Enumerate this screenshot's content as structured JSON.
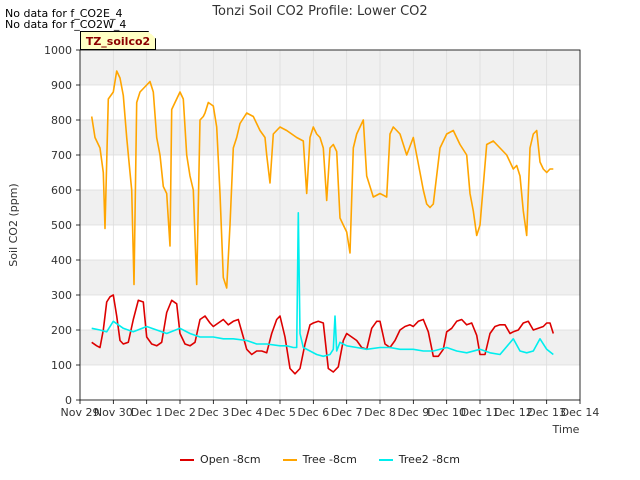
{
  "header": {
    "nodata_lines": [
      "No data for f_CO2E_4",
      "No data for f_CO2W_4"
    ],
    "station_tag": "TZ_soilco2"
  },
  "chart_data": {
    "type": "line",
    "title": "Tonzi Soil CO2 Profile: Lower CO2",
    "xlabel": "Time",
    "ylabel": "Soil CO2 (ppm)",
    "xlim": [
      0,
      15
    ],
    "ylim": [
      0,
      1000
    ],
    "grid": true,
    "legend_position": "bottom-center",
    "x_ticks": [
      0,
      1,
      2,
      3,
      4,
      5,
      6,
      7,
      8,
      9,
      10,
      11,
      12,
      13,
      14,
      15
    ],
    "x_tick_labels": [
      "Nov 29",
      "Nov 30",
      "Dec 1",
      "Dec 2",
      "Dec 3",
      "Dec 4",
      "Dec 5",
      "Dec 6",
      "Dec 7",
      "Dec 8",
      "Dec 9",
      "Dec 10",
      "Dec 11",
      "Dec 12",
      "Dec 13",
      "Dec 14"
    ],
    "y_ticks": [
      0,
      100,
      200,
      300,
      400,
      500,
      600,
      700,
      800,
      900,
      1000
    ],
    "y_tick_labels": [
      "0",
      "100",
      "200",
      "300",
      "400",
      "500",
      "600",
      "700",
      "800",
      "900",
      "1000"
    ],
    "series": [
      {
        "name": "Open -8cm",
        "color": "#dd0000",
        "x": [
          0.35,
          0.5,
          0.6,
          0.7,
          0.8,
          0.9,
          1.0,
          1.1,
          1.2,
          1.3,
          1.45,
          1.6,
          1.75,
          1.9,
          2.0,
          2.15,
          2.3,
          2.45,
          2.6,
          2.75,
          2.9,
          3.0,
          3.15,
          3.3,
          3.45,
          3.6,
          3.75,
          3.9,
          4.0,
          4.15,
          4.3,
          4.45,
          4.6,
          4.75,
          4.9,
          5.0,
          5.15,
          5.3,
          5.45,
          5.6,
          5.75,
          5.9,
          6.0,
          6.15,
          6.3,
          6.45,
          6.6,
          6.75,
          6.9,
          7.0,
          7.15,
          7.3,
          7.45,
          7.6,
          7.75,
          7.9,
          8.0,
          8.15,
          8.3,
          8.45,
          8.6,
          8.75,
          8.9,
          9.0,
          9.15,
          9.3,
          9.45,
          9.6,
          9.75,
          9.9,
          10.0,
          10.15,
          10.3,
          10.45,
          10.6,
          10.75,
          10.9,
          11.0,
          11.15,
          11.3,
          11.45,
          11.6,
          11.75,
          11.9,
          12.0,
          12.15,
          12.3,
          12.45,
          12.6,
          12.75,
          12.9,
          13.0,
          13.15,
          13.3,
          13.45,
          13.6,
          13.75,
          13.9,
          14.0,
          14.1,
          14.2
        ],
        "y": [
          165,
          155,
          150,
          200,
          280,
          295,
          300,
          240,
          170,
          160,
          165,
          230,
          285,
          280,
          180,
          160,
          155,
          165,
          250,
          285,
          275,
          190,
          160,
          155,
          165,
          230,
          240,
          220,
          210,
          220,
          230,
          215,
          225,
          230,
          180,
          145,
          130,
          140,
          140,
          135,
          190,
          230,
          240,
          180,
          90,
          75,
          90,
          160,
          215,
          220,
          225,
          220,
          90,
          80,
          95,
          170,
          190,
          180,
          170,
          150,
          145,
          205,
          225,
          225,
          160,
          150,
          170,
          200,
          210,
          215,
          210,
          225,
          230,
          195,
          125,
          125,
          145,
          195,
          205,
          225,
          230,
          215,
          220,
          185,
          130,
          130,
          190,
          210,
          215,
          215,
          190,
          195,
          200,
          220,
          225,
          200,
          205,
          210,
          220,
          220,
          190
        ],
        "note": "values are approximate readings from the figure"
      },
      {
        "name": "Tree -8cm",
        "color": "#ffa500",
        "x": [
          0.35,
          0.45,
          0.6,
          0.7,
          0.75,
          0.85,
          1.0,
          1.1,
          1.2,
          1.3,
          1.4,
          1.5,
          1.55,
          1.62,
          1.7,
          1.8,
          2.0,
          2.1,
          2.2,
          2.3,
          2.4,
          2.5,
          2.6,
          2.7,
          2.75,
          2.85,
          3.0,
          3.1,
          3.2,
          3.3,
          3.4,
          3.5,
          3.6,
          3.7,
          3.75,
          3.85,
          4.0,
          4.1,
          4.2,
          4.3,
          4.4,
          4.5,
          4.6,
          4.7,
          4.8,
          5.0,
          5.2,
          5.4,
          5.55,
          5.6,
          5.7,
          5.8,
          6.0,
          6.2,
          6.5,
          6.7,
          6.8,
          6.9,
          7.0,
          7.1,
          7.2,
          7.3,
          7.4,
          7.5,
          7.6,
          7.7,
          7.8,
          7.9,
          8.0,
          8.1,
          8.2,
          8.3,
          8.4,
          8.5,
          8.6,
          8.7,
          8.8,
          9.0,
          9.2,
          9.3,
          9.4,
          9.5,
          9.6,
          9.8,
          10.0,
          10.2,
          10.3,
          10.4,
          10.5,
          10.6,
          10.8,
          11.0,
          11.2,
          11.4,
          11.6,
          11.7,
          11.8,
          11.9,
          12.0,
          12.2,
          12.4,
          12.6,
          12.8,
          12.9,
          13.0,
          13.1,
          13.2,
          13.3,
          13.4,
          13.5,
          13.6,
          13.7,
          13.8,
          13.9,
          14.0,
          14.1,
          14.2
        ],
        "y": [
          810,
          750,
          720,
          650,
          490,
          860,
          880,
          940,
          920,
          870,
          750,
          650,
          600,
          330,
          850,
          880,
          900,
          910,
          880,
          750,
          700,
          610,
          590,
          440,
          830,
          850,
          880,
          860,
          700,
          640,
          600,
          330,
          800,
          810,
          820,
          850,
          840,
          780,
          590,
          350,
          320,
          500,
          720,
          750,
          790,
          820,
          810,
          770,
          750,
          700,
          620,
          760,
          780,
          770,
          750,
          740,
          590,
          750,
          780,
          760,
          750,
          720,
          570,
          720,
          730,
          710,
          520,
          500,
          480,
          420,
          720,
          760,
          780,
          800,
          640,
          610,
          580,
          590,
          580,
          760,
          780,
          770,
          760,
          700,
          750,
          650,
          600,
          560,
          550,
          560,
          720,
          760,
          770,
          730,
          700,
          590,
          540,
          470,
          500,
          730,
          740,
          720,
          700,
          680,
          660,
          670,
          640,
          540,
          470,
          720,
          760,
          770,
          680,
          660,
          650,
          660,
          660
        ],
        "note": "values are approximate readings from the figure"
      },
      {
        "name": "Tree2 -8cm",
        "color": "#00eeee",
        "x": [
          0.35,
          0.6,
          0.8,
          1.0,
          1.3,
          1.6,
          2.0,
          2.3,
          2.6,
          3.0,
          3.3,
          3.6,
          4.0,
          4.3,
          4.6,
          5.0,
          5.3,
          5.6,
          6.0,
          6.2,
          6.4,
          6.5,
          6.55,
          6.6,
          6.7,
          6.9,
          7.1,
          7.3,
          7.5,
          7.6,
          7.65,
          7.7,
          7.8,
          8.0,
          8.3,
          8.6,
          9.0,
          9.3,
          9.6,
          10.0,
          10.3,
          10.6,
          11.0,
          11.3,
          11.6,
          12.0,
          12.3,
          12.6,
          13.0,
          13.2,
          13.4,
          13.6,
          13.8,
          14.0,
          14.2
        ],
        "y": [
          205,
          200,
          195,
          225,
          205,
          195,
          210,
          200,
          190,
          205,
          190,
          180,
          180,
          175,
          175,
          170,
          160,
          160,
          155,
          155,
          150,
          150,
          535,
          190,
          150,
          140,
          130,
          125,
          130,
          145,
          240,
          140,
          165,
          155,
          150,
          145,
          150,
          150,
          145,
          145,
          140,
          140,
          150,
          140,
          135,
          145,
          135,
          130,
          175,
          140,
          135,
          140,
          175,
          145,
          130
        ],
        "note": "values are approximate readings from the figure"
      }
    ]
  }
}
